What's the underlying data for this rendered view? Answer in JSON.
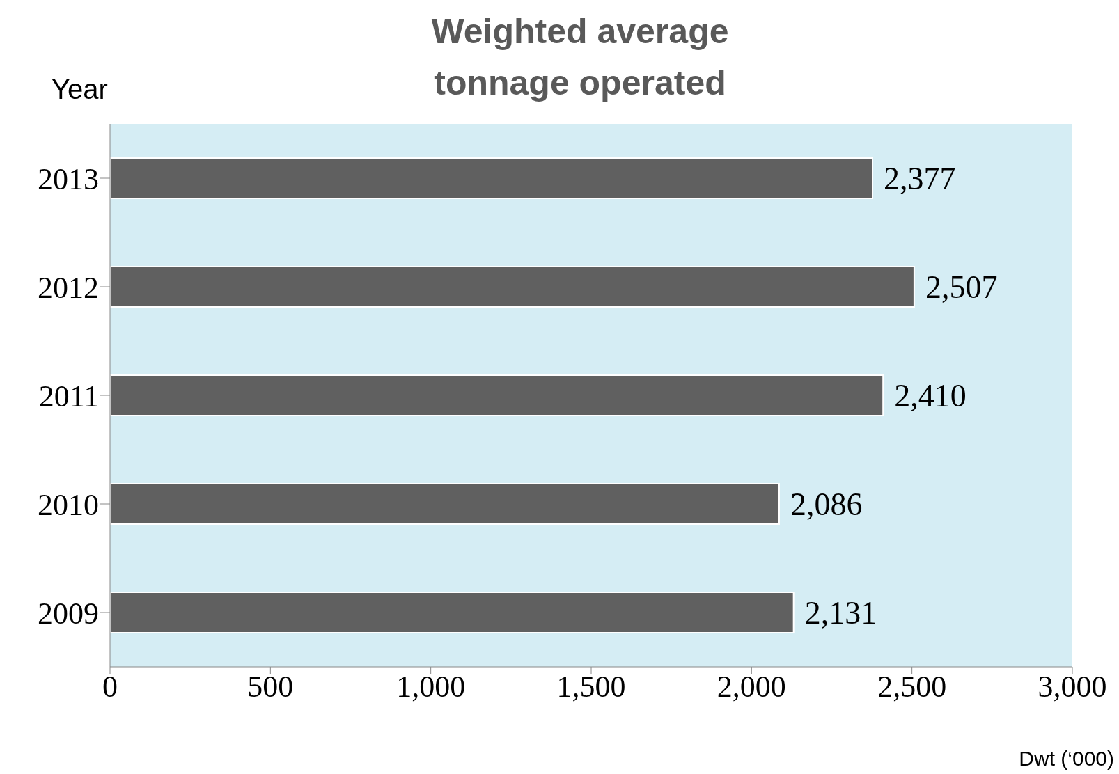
{
  "chart_data": {
    "type": "bar",
    "orientation": "horizontal",
    "title": "Weighted average tonnage operated",
    "ylabel": "Year",
    "xlabel": "Dwt (‘000)",
    "categories": [
      "2013",
      "2012",
      "2011",
      "2010",
      "2009"
    ],
    "values": [
      2377,
      2507,
      2410,
      2086,
      2131
    ],
    "color": "#606060",
    "value_labels": [
      "2,377",
      "2,507",
      "2,410",
      "2,086",
      "2,131"
    ],
    "xlim": [
      0,
      3000
    ],
    "xticks": [
      0,
      500,
      {
        "value": 1000,
        "label": "1,000"
      },
      {
        "value": 1500,
        "label": "1,500"
      },
      {
        "value": 2000,
        "label": "2,000"
      },
      {
        "value": 2500,
        "label": "2,500"
      },
      {
        "value": 3000,
        "label": "3,000"
      }
    ],
    "grid": false
  }
}
